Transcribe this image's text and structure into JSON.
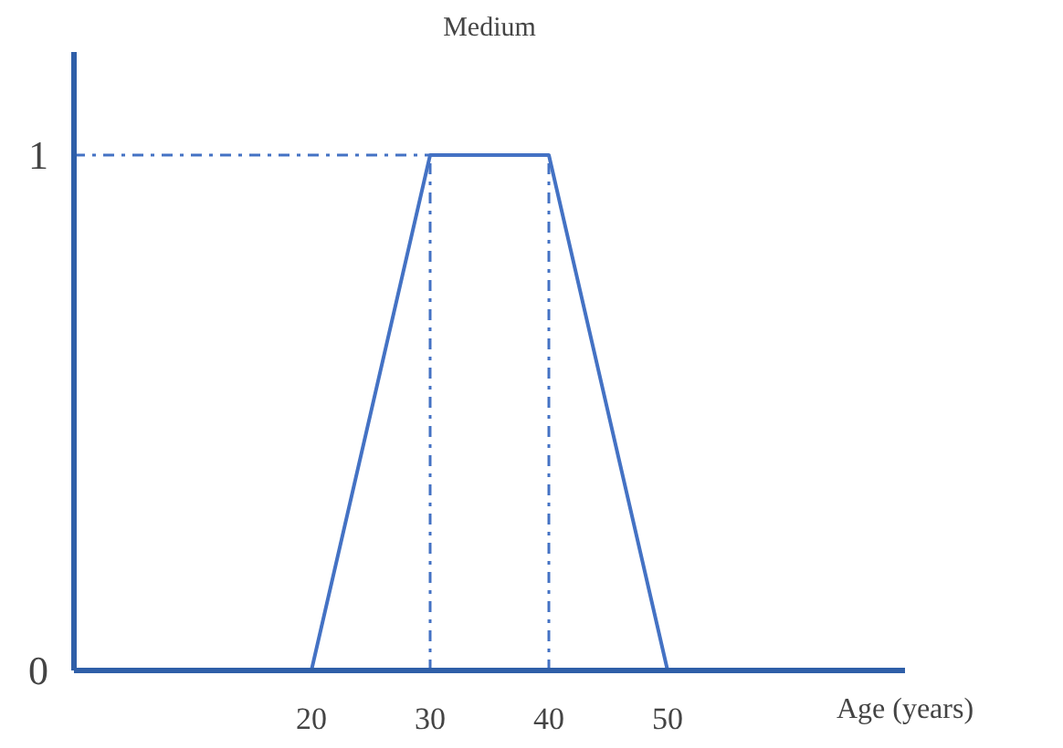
{
  "chart_data": {
    "type": "line",
    "title": "Medium",
    "xlabel": "Age (years)",
    "x": [
      20,
      30,
      40,
      50
    ],
    "series": [
      {
        "color": "#4472c4",
        "values": [
          0,
          1,
          1,
          0
        ]
      }
    ],
    "xlim": [
      0,
      70
    ],
    "ylim": [
      0,
      1.2
    ],
    "xticks": [
      20,
      30,
      40,
      50
    ],
    "yticks": [
      0,
      1
    ],
    "ref_lines": [
      {
        "axis": "y",
        "value": 1,
        "color": "#4472c4",
        "line_style": "dashdot"
      },
      {
        "axis": "x",
        "value": 30,
        "color": "#4472c4",
        "line_style": "dashdot"
      },
      {
        "axis": "x",
        "value": 40,
        "color": "#4472c4",
        "line_style": "dashdot"
      }
    ],
    "grid": false,
    "marker": "none",
    "line_style": "solid"
  }
}
